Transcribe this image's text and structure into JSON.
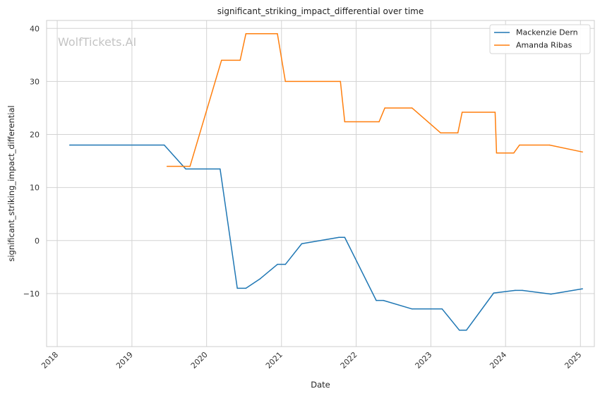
{
  "chart_data": {
    "type": "line",
    "title": "significant_striking_impact_differential over time",
    "xlabel": "Date",
    "ylabel": "significant_striking_impact_differential",
    "x_ticks": [
      "2018",
      "2019",
      "2020",
      "2021",
      "2022",
      "2023",
      "2024",
      "2025"
    ],
    "y_ticks": [
      -10,
      0,
      10,
      20,
      30,
      40
    ],
    "xlim": [
      "2017-11-10",
      "2025-03-10"
    ],
    "ylim": [
      -20,
      41.5
    ],
    "grid": true,
    "legend_position": "top-right",
    "watermark": "WolfTickets.AI",
    "series": [
      {
        "name": "Mackenzie Dern",
        "color": "#1f77b4",
        "points": [
          [
            "2018-03-03",
            18
          ],
          [
            "2019-06-08",
            18
          ],
          [
            "2019-09-21",
            13.5
          ],
          [
            "2020-03-07",
            13.5
          ],
          [
            "2020-05-30",
            -9
          ],
          [
            "2020-07-11",
            -9
          ],
          [
            "2020-09-19",
            -7.2
          ],
          [
            "2020-12-12",
            -4.5
          ],
          [
            "2021-01-20",
            -4.5
          ],
          [
            "2021-04-10",
            -0.6
          ],
          [
            "2021-10-09",
            0.6
          ],
          [
            "2021-11-06",
            0.6
          ],
          [
            "2022-04-09",
            -11.3
          ],
          [
            "2022-05-14",
            -11.3
          ],
          [
            "2022-10-01",
            -12.9
          ],
          [
            "2023-02-25",
            -12.9
          ],
          [
            "2023-05-20",
            -16.9
          ],
          [
            "2023-06-24",
            -16.9
          ],
          [
            "2023-11-04",
            -9.9
          ],
          [
            "2024-02-17",
            -9.4
          ],
          [
            "2024-03-23",
            -9.4
          ],
          [
            "2024-08-10",
            -10.1
          ],
          [
            "2025-01-11",
            -9.1
          ]
        ]
      },
      {
        "name": "Amanda Ribas",
        "color": "#ff7f0e",
        "points": [
          [
            "2019-06-22",
            14
          ],
          [
            "2019-10-12",
            14
          ],
          [
            "2020-03-14",
            34
          ],
          [
            "2020-06-13",
            34
          ],
          [
            "2020-07-11",
            39
          ],
          [
            "2020-12-12",
            39
          ],
          [
            "2021-01-20",
            30
          ],
          [
            "2021-10-16",
            30
          ],
          [
            "2021-11-06",
            22.4
          ],
          [
            "2022-04-23",
            22.4
          ],
          [
            "2022-05-21",
            25
          ],
          [
            "2022-10-01",
            25
          ],
          [
            "2023-02-18",
            20.3
          ],
          [
            "2023-05-13",
            20.3
          ],
          [
            "2023-06-03",
            24.2
          ],
          [
            "2023-11-11",
            24.2
          ],
          [
            "2023-11-18",
            16.5
          ],
          [
            "2024-02-10",
            16.5
          ],
          [
            "2024-03-09",
            18
          ],
          [
            "2024-08-03",
            18
          ],
          [
            "2025-01-11",
            16.7
          ]
        ]
      }
    ]
  }
}
